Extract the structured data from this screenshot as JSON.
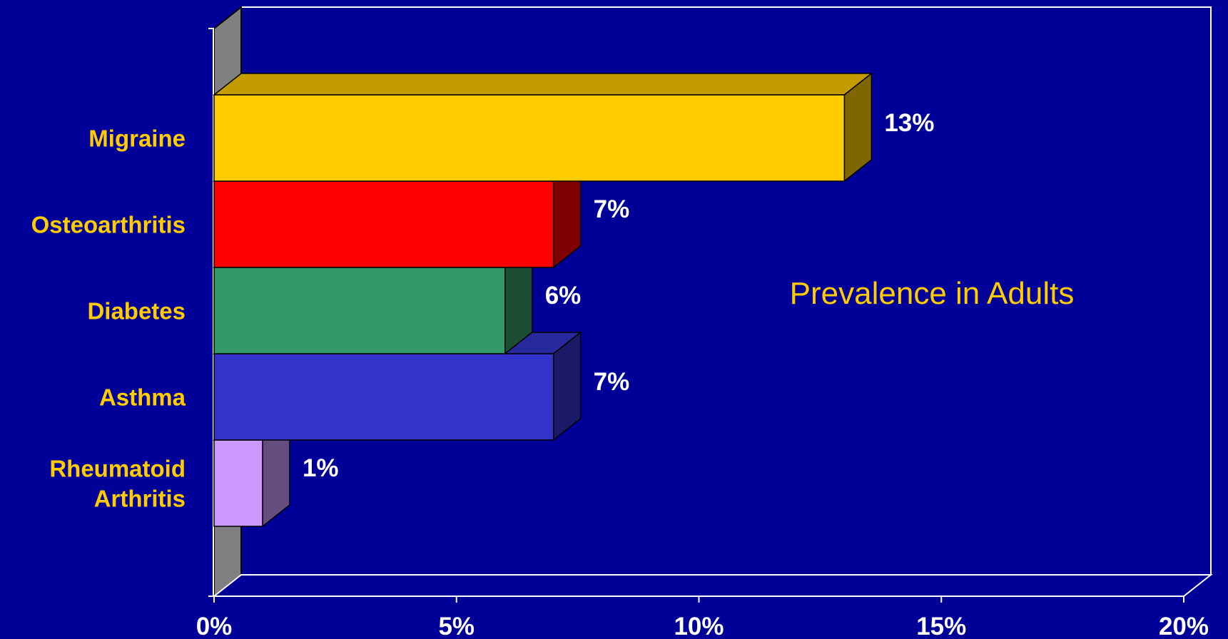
{
  "chart_data": {
    "type": "bar",
    "orientation": "horizontal",
    "three_d": true,
    "categories": [
      "Migraine",
      "Osteoarthritis",
      "Diabetes",
      "Asthma",
      "Rheumatoid Arthritis"
    ],
    "category_label_lines": [
      [
        "Migraine"
      ],
      [
        "Osteoarthritis"
      ],
      [
        "Diabetes"
      ],
      [
        "Asthma"
      ],
      [
        "Rheumatoid",
        "Arthritis"
      ]
    ],
    "values": [
      13,
      7,
      6,
      7,
      1
    ],
    "data_labels": [
      "13%",
      "7%",
      "6%",
      "7%",
      "1%"
    ],
    "xlim": [
      0,
      20
    ],
    "x_ticks": [
      0,
      5,
      10,
      15,
      20
    ],
    "x_tick_labels": [
      "0%",
      "5%",
      "10%",
      "15%",
      "20%"
    ],
    "annotation": "Prevalence in Adults",
    "grid": false,
    "legend": "none",
    "colors": {
      "background": "#000099",
      "category_text": "#ffcc00",
      "annotation_text": "#ffcc00",
      "tick_text": "#ffffff",
      "value_text": "#ffffff",
      "axis_line": "#ffffff",
      "side_wall": "#808080",
      "bars": [
        {
          "front": "#ffcc00",
          "top": "#c49c00",
          "side": "#7f6600"
        },
        {
          "front": "#ff0000",
          "top": "#c40000",
          "side": "#7f0000"
        },
        {
          "front": "#339966",
          "top": "#28784f",
          "side": "#1a4d33"
        },
        {
          "front": "#3333cc",
          "top": "#29299e",
          "side": "#1a1a66"
        },
        {
          "front": "#cc99ff",
          "top": "#a07ac8",
          "side": "#664d80"
        }
      ]
    }
  }
}
